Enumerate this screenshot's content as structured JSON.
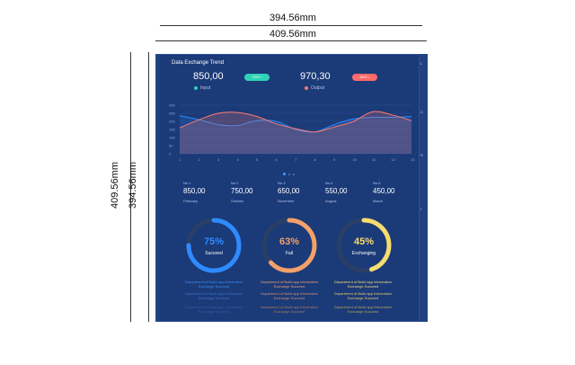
{
  "dimensions": {
    "top_width": "394.56mm",
    "top_width_outer": "409.56mm",
    "left_height_outer": "409.56mm",
    "left_height_inner": "394.56mm"
  },
  "panel": {
    "title": "Data Exchange Trend",
    "input_value": "850,00",
    "input_badge": "70% ↑",
    "input_label": "Input",
    "output_value": "970,30",
    "output_badge": "20% ↓",
    "output_label": "Output",
    "colors": {
      "input": "#2ed3b6",
      "output": "#ff7a6e"
    }
  },
  "chart_data": {
    "type": "area",
    "x": [
      "1",
      "2",
      "3",
      "4",
      "5",
      "6",
      "7",
      "8",
      "9",
      "10",
      "11",
      "12",
      "13"
    ],
    "y_ticks": [
      "300",
      "250",
      "200",
      "150",
      "100",
      "50",
      "0"
    ],
    "ylim": [
      0,
      300
    ],
    "series": [
      {
        "name": "Input",
        "color": "#2e8bff",
        "values": [
          235,
          210,
          180,
          175,
          205,
          200,
          150,
          135,
          180,
          215,
          225,
          225,
          230
        ]
      },
      {
        "name": "Output",
        "color": "#ff7a6e",
        "values": [
          160,
          210,
          250,
          255,
          230,
          185,
          155,
          135,
          165,
          200,
          260,
          240,
          205
        ]
      }
    ]
  },
  "stats": [
    {
      "no": "No.1",
      "value": "850,00",
      "month": "February"
    },
    {
      "no": "No.2",
      "value": "750,00",
      "month": "October"
    },
    {
      "no": "No.3",
      "value": "650,00",
      "month": "November"
    },
    {
      "no": "No.4",
      "value": "550,00",
      "month": "August"
    },
    {
      "no": "No.5",
      "value": "450,00",
      "month": "March"
    }
  ],
  "gauges": [
    {
      "percent": 75,
      "percent_text": "75%",
      "label": "Succeed",
      "color": "#2e8bff",
      "desc1": "Department of Build app information",
      "desc2": "Exchange Succeed",
      "desc3": "Department of Build app Information Exchange Succeed",
      "desc4": "Department of Build app Information Exchange Succeed"
    },
    {
      "percent": 63,
      "percent_text": "63%",
      "label": "Fail",
      "color": "#f4a06a",
      "desc1": "Department of Build app information",
      "desc2": "Exchange Succeed",
      "desc3": "Department of Build app Information Exchange Succeed",
      "desc4": "Department of Build app Information Exchange Succeed"
    },
    {
      "percent": 45,
      "percent_text": "45%",
      "label": "Exchanging",
      "color": "#f7dc6f",
      "desc1": "Department of Build app information",
      "desc2": "Exchange Succeed",
      "desc3": "Department of Build app Information Exchange Succeed",
      "desc4": "Department of Build app Information Exchange Succeed"
    }
  ],
  "right_strip": [
    "L",
    "C",
    "S",
    "I"
  ]
}
